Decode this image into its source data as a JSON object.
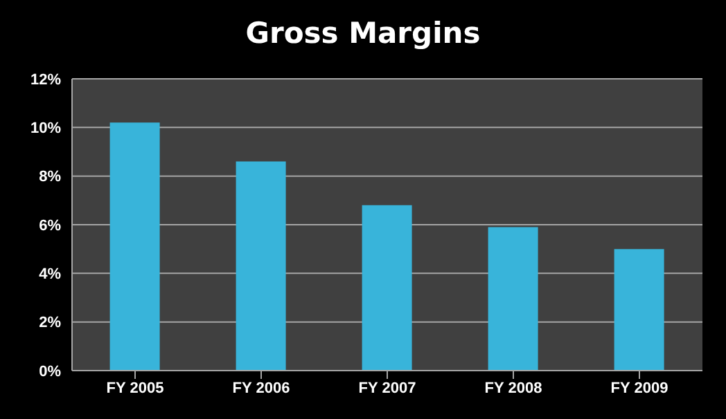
{
  "chart_data": {
    "type": "bar",
    "title": "Gross Margins",
    "categories": [
      "FY 2005",
      "FY 2006",
      "FY 2007",
      "FY 2008",
      "FY 2009"
    ],
    "values": [
      10.2,
      8.6,
      6.8,
      5.9,
      5.0
    ],
    "color": "#38b4da",
    "ylim": [
      0,
      12
    ],
    "yticks": [
      {
        "value": 0,
        "label": "0%"
      },
      {
        "value": 2,
        "label": "2%"
      },
      {
        "value": 4,
        "label": "4%"
      },
      {
        "value": 6,
        "label": "6%"
      },
      {
        "value": 8,
        "label": "8%"
      },
      {
        "value": 10,
        "label": "10%"
      },
      {
        "value": 12,
        "label": "12%"
      }
    ],
    "grid": "y"
  }
}
